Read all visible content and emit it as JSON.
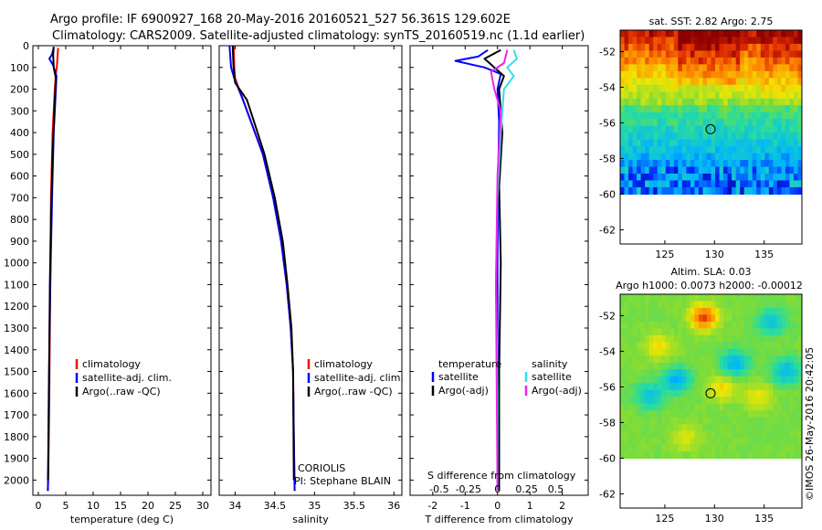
{
  "header": {
    "line1": "Argo profile: IF 6900927_168 20-May-2016 20160521_527 56.361S 129.602E",
    "line2": "Climatology: CARS2009. Satellite-adjusted climatology: synTS_20160519.nc (1.1d earlier)"
  },
  "watermark": "©IMOS 26-May-2016 20:42:05",
  "colors": {
    "climatology": "#ff0000",
    "satellite": "#0000ff",
    "argo": "#000000",
    "sat_sal": "#33ddee",
    "argo_sal": "#ee22ee",
    "profile_blue": "#0022ff"
  },
  "chart_data": [
    {
      "id": "temperature",
      "type": "line",
      "xlabel": "temperature (deg C)",
      "ylabel": "",
      "xlim": [
        -1,
        31.5
      ],
      "ylim": [
        2070,
        0
      ],
      "xticks": [
        0,
        5,
        10,
        15,
        20,
        25,
        30
      ],
      "xtick_labels": [
        "0",
        "5",
        "10",
        "15",
        "20",
        "25",
        "30"
      ],
      "yticks": [
        0,
        100,
        200,
        300,
        400,
        500,
        600,
        700,
        800,
        900,
        1000,
        1100,
        1200,
        1300,
        1400,
        1500,
        1600,
        1700,
        1800,
        1900,
        2000
      ],
      "ytick_labels": [
        "0",
        "100",
        "200",
        "300",
        "400",
        "500",
        "600",
        "700",
        "800",
        "900",
        "1000",
        "1100",
        "1200",
        "1300",
        "1400",
        "1500",
        "1600",
        "1700",
        "1800",
        "1900",
        "2000"
      ],
      "legend": [
        "climatology",
        "satellite-adj. clim.",
        "Argo(..raw -QC)"
      ],
      "legend_loc": "lower-middle",
      "series": [
        {
          "name": "climatology",
          "color": "#ff0000",
          "x": [
            3.6,
            3.5,
            3.4,
            3.2,
            3.0,
            2.6,
            2.3,
            2.2,
            2.1,
            2.0,
            1.9,
            1.8,
            1.7
          ],
          "y": [
            10,
            50,
            90,
            130,
            200,
            400,
            700,
            1000,
            1300,
            1600,
            1800,
            2000,
            2050
          ]
        },
        {
          "name": "satellite-adj. clim.",
          "color": "#0000ff",
          "x": [
            2.8,
            2.5,
            2.0,
            2.7,
            3.3,
            3.1,
            2.8,
            2.5,
            2.25,
            2.05,
            1.9,
            1.8,
            1.75
          ],
          "y": [
            10,
            40,
            60,
            90,
            140,
            250,
            400,
            700,
            1000,
            1300,
            1600,
            1900,
            2050
          ]
        },
        {
          "name": "Argo(..raw -QC)",
          "color": "#000000",
          "x": [
            2.8,
            2.7,
            2.8,
            3.2,
            3.0,
            2.6,
            2.3,
            2.1,
            2.0,
            1.9,
            1.8,
            1.75
          ],
          "y": [
            5,
            40,
            100,
            150,
            250,
            500,
            800,
            1100,
            1400,
            1700,
            1950,
            2000
          ]
        }
      ]
    },
    {
      "id": "salinity",
      "type": "line",
      "xlabel": "salinity",
      "ylabel": "",
      "xlim": [
        33.8,
        36.1
      ],
      "ylim": [
        2070,
        0
      ],
      "xticks": [
        34,
        34.5,
        35,
        35.5,
        36
      ],
      "xtick_labels": [
        "34",
        "34.5",
        "35",
        "35.5",
        "36"
      ],
      "legend": [
        "climatology",
        "satellite-adj. clim.",
        "Argo(..raw -QC)"
      ],
      "legend_loc": "lower-middle",
      "annotations": [
        "CORIOLIS",
        "PI: Stephane BLAIN"
      ],
      "series": [
        {
          "name": "climatology",
          "color": "#ff0000",
          "x": [
            33.98,
            33.99,
            34.0,
            34.1,
            34.2,
            34.35,
            34.48,
            34.58,
            34.65,
            34.7,
            34.73,
            34.74,
            34.75
          ],
          "y": [
            0,
            100,
            150,
            250,
            350,
            500,
            700,
            900,
            1100,
            1300,
            1500,
            1800,
            2050
          ]
        },
        {
          "name": "satellite-adj. clim.",
          "color": "#0000ff",
          "x": [
            33.93,
            33.95,
            33.99,
            34.1,
            34.2,
            34.35,
            34.48,
            34.58,
            34.65,
            34.7,
            34.73,
            34.74,
            34.75
          ],
          "y": [
            0,
            100,
            150,
            250,
            350,
            500,
            700,
            900,
            1100,
            1300,
            1500,
            1800,
            2050
          ]
        },
        {
          "name": "Argo(..raw -QC)",
          "color": "#000000",
          "x": [
            33.97,
            33.98,
            34.0,
            34.15,
            34.23,
            34.37,
            34.5,
            34.6,
            34.66,
            34.71,
            34.73,
            34.74
          ],
          "y": [
            0,
            100,
            170,
            250,
            340,
            500,
            700,
            900,
            1100,
            1300,
            1500,
            2000
          ]
        }
      ]
    },
    {
      "id": "differences",
      "type": "line",
      "xlabel": "T difference from climatology",
      "xlabel2": "S difference from climatology",
      "xlim": [
        -2.7,
        2.8
      ],
      "ylim": [
        2070,
        0
      ],
      "xticks": [
        -2,
        -1,
        0,
        1,
        2
      ],
      "xtick_labels": [
        "-2",
        "-1",
        "0",
        "1",
        "2"
      ],
      "xticks_s": [
        -0.5,
        -0.25,
        0,
        0.25,
        0.5
      ],
      "xticks_s_pos": [
        -1.8,
        -0.9,
        0,
        0.9,
        1.8
      ],
      "xticks_s_labels": [
        "-0.5",
        "-0.25",
        "0",
        "0.25",
        "0.5"
      ],
      "legend_headers": [
        "temperature",
        "salinity"
      ],
      "legend": [
        "satellite",
        "Argo(-adj)",
        "satellite",
        "Argo(-adj)"
      ],
      "legend_loc": "lower-middle",
      "series": [
        {
          "name": "temperature satellite",
          "color": "#0000ff",
          "x": [
            -0.3,
            -0.6,
            -1.3,
            -0.4,
            0.1,
            0.0,
            0.05,
            0.02,
            0.0,
            0.0,
            0.0
          ],
          "y": [
            20,
            50,
            70,
            100,
            130,
            200,
            350,
            600,
            1000,
            1500,
            2050
          ]
        },
        {
          "name": "temperature Argo(-adj)",
          "color": "#000000",
          "x": [
            0.1,
            -0.4,
            -0.1,
            0.2,
            0.05,
            0.15,
            0.05,
            0.1,
            0.05,
            0.05
          ],
          "y": [
            20,
            60,
            100,
            140,
            200,
            400,
            650,
            1000,
            1500,
            2050
          ]
        },
        {
          "name": "salinity satellite",
          "color": "#33ddee",
          "x": [
            0.5,
            0.6,
            0.3,
            0.5,
            0.2,
            0.1,
            0.0,
            -0.05,
            0.0,
            0.0
          ],
          "y": [
            20,
            60,
            100,
            140,
            200,
            400,
            700,
            1100,
            1600,
            2050
          ]
        },
        {
          "name": "salinity Argo(-adj)",
          "color": "#ee22ee",
          "x": [
            0.3,
            0.2,
            -0.2,
            -0.1,
            0.1,
            0.0,
            -0.05,
            0.0
          ],
          "y": [
            20,
            80,
            120,
            200,
            300,
            600,
            1100,
            2050
          ]
        }
      ]
    },
    {
      "id": "sst_map",
      "type": "heatmap",
      "title": "sat. SST: 2.82 Argo: 2.75",
      "xlim": [
        120.5,
        138.8
      ],
      "ylim": [
        -62.8,
        -50.8
      ],
      "xticks": [
        125,
        130,
        135
      ],
      "xtick_labels": [
        "125",
        "130",
        "135"
      ],
      "yticks": [
        -52,
        -54,
        -56,
        -58,
        -60,
        -62
      ],
      "ytick_labels": [
        "-52",
        "-54",
        "-56",
        "-58",
        "-60",
        "-62"
      ],
      "marker": {
        "lon": 129.6,
        "lat": -56.36
      },
      "data_extent_lat": [
        -60,
        -50.8
      ]
    },
    {
      "id": "sla_map",
      "type": "heatmap",
      "title": "Altim. SLA: 0.03",
      "subtitle": "Argo h1000: 0.0073 h2000: -0.00012",
      "xlim": [
        120.5,
        138.8
      ],
      "ylim": [
        -62.8,
        -50.8
      ],
      "xticks": [
        125,
        130,
        135
      ],
      "xtick_labels": [
        "125",
        "130",
        "135"
      ],
      "yticks": [
        -52,
        -54,
        -56,
        -58,
        -60,
        -62
      ],
      "ytick_labels": [
        "-52",
        "-54",
        "-56",
        "-58",
        "-60",
        "-62"
      ],
      "marker": {
        "lon": 129.6,
        "lat": -56.36
      },
      "data_extent_lat": [
        -60,
        -50.8
      ]
    }
  ]
}
